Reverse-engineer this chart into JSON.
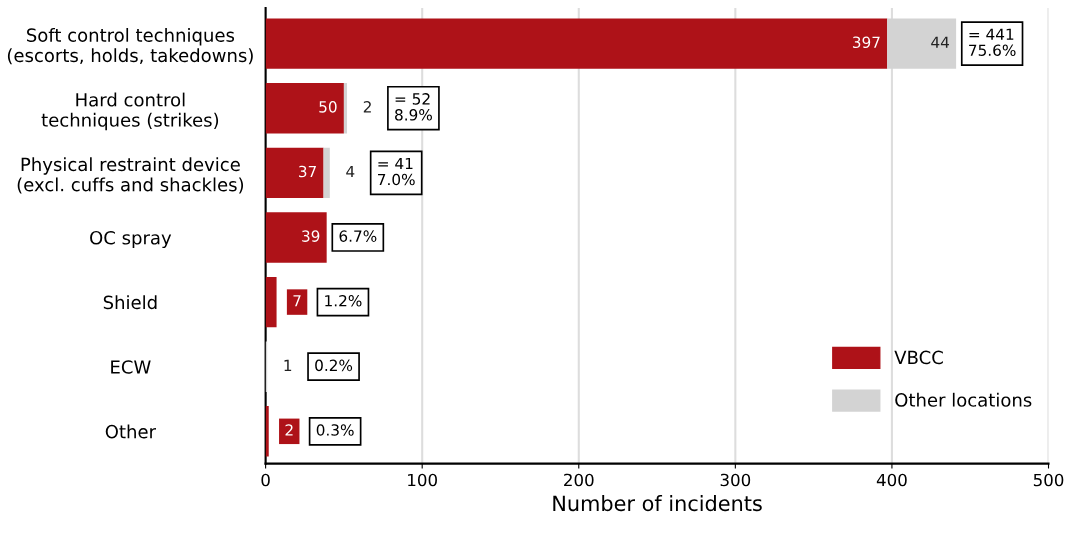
{
  "chart_data": {
    "type": "bar",
    "orientation": "horizontal",
    "stacked": true,
    "categories": [
      "Soft control techniques\n(escorts, holds, takedowns)",
      "Hard control\ntechniques (strikes)",
      "Physical restraint device\n(excl. cuffs and shackles)",
      "OC spray",
      "Shield",
      "ECW",
      "Other"
    ],
    "series": [
      {
        "name": "VBCC",
        "color": "#ae1218",
        "values": [
          397,
          50,
          37,
          39,
          7,
          0,
          2
        ],
        "value_labels": [
          "397",
          "50",
          "37",
          "39",
          "7",
          null,
          "2"
        ]
      },
      {
        "name": "Other locations",
        "color": "#d3d3d3",
        "values": [
          44,
          2,
          4,
          0,
          0,
          1,
          0
        ],
        "value_labels": [
          "44",
          "2",
          "4",
          null,
          null,
          "1",
          null
        ]
      }
    ],
    "xlabel": "Number of incidents",
    "xlim": [
      0,
      500
    ],
    "xticks": [
      0,
      100,
      200,
      300,
      400,
      500
    ],
    "grid": "x",
    "legend": "bottom right",
    "annotations": [
      "= 441\n75.6%",
      "= 52\n8.9%",
      "= 41\n7.0%",
      "6.7%",
      "1.2%",
      "0.2%",
      "0.3%"
    ]
  }
}
